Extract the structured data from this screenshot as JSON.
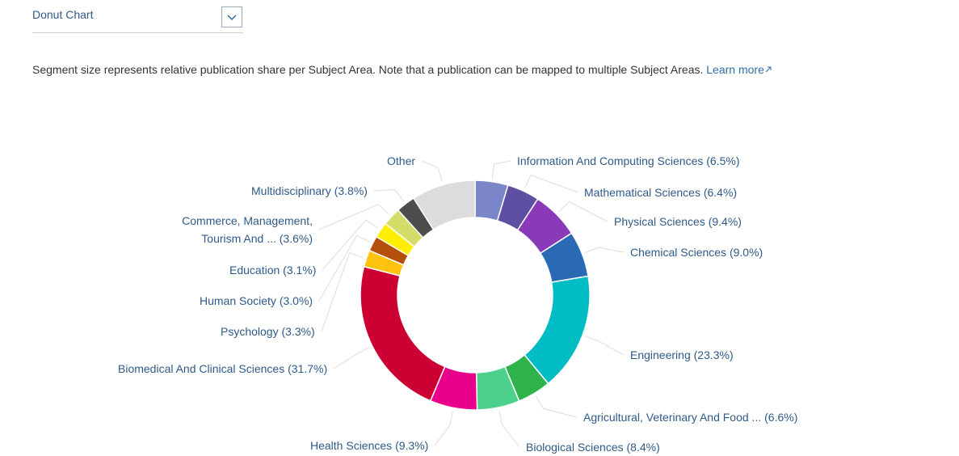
{
  "dropdown": {
    "label": "Donut Chart"
  },
  "description": {
    "text": "Segment size represents relative publication share per Subject Area. Note that a publication can be mapped to multiple Subject Areas.",
    "link": "Learn more"
  },
  "chart_data": {
    "type": "donut",
    "categories": [
      "Information And Computing Sciences",
      "Mathematical Sciences",
      "Physical Sciences",
      "Chemical Sciences",
      "Engineering",
      "Agricultural, Veterinary And Food ...",
      "Biological Sciences",
      "Health Sciences",
      "Biomedical And Clinical Sciences",
      "Psychology",
      "Human Society",
      "Education",
      "Commerce, Management, Tourism And ...",
      "Multidisciplinary",
      "Other"
    ],
    "values": [
      6.5,
      6.4,
      9.4,
      9.0,
      23.3,
      6.6,
      8.4,
      9.3,
      31.7,
      3.3,
      3.0,
      3.1,
      3.6,
      3.8,
      12.6
    ],
    "value_labels": [
      "(6.5%)",
      "(6.4%)",
      "(9.4%)",
      "(9.0%)",
      "(23.3%)",
      "(6.6%)",
      "(8.4%)",
      "(9.3%)",
      "(31.7%)",
      "(3.3%)",
      "(3.0%)",
      "(3.1%)",
      "(3.6%)",
      "(3.8%)",
      null
    ],
    "colors": [
      "#7b86c8",
      "#5e4fa2",
      "#8a3ab9",
      "#2a6ab5",
      "#00bcc4",
      "#2db34a",
      "#4cd08c",
      "#e8008a",
      "#cc0033",
      "#ffc20e",
      "#b5500b",
      "#ffee00",
      "#d4dc6a",
      "#4d4d4d",
      "#dcdcdc"
    ]
  }
}
